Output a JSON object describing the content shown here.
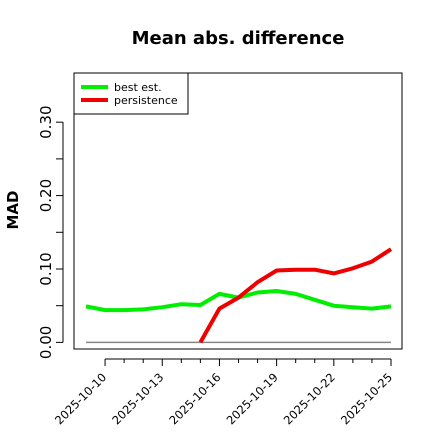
{
  "chart_data": {
    "type": "line",
    "title": "Mean abs. difference",
    "xlabel": "",
    "ylabel": "MAD",
    "x": [
      "2025-10-09",
      "2025-10-10",
      "2025-10-11",
      "2025-10-12",
      "2025-10-13",
      "2025-10-14",
      "2025-10-15",
      "2025-10-16",
      "2025-10-17",
      "2025-10-18",
      "2025-10-19",
      "2025-10-20",
      "2025-10-21",
      "2025-10-22",
      "2025-10-23",
      "2025-10-24",
      "2025-10-25"
    ],
    "xticks": [
      "2025-10-10",
      "2025-10-13",
      "2025-10-16",
      "2025-10-19",
      "2025-10-22",
      "2025-10-25"
    ],
    "yticks": [
      0.0,
      0.1,
      0.2,
      0.3
    ],
    "ytick_labels": [
      "0.00",
      "0.10",
      "0.20",
      "0.30"
    ],
    "ylim": [
      -0.009,
      0.367
    ],
    "grid": false,
    "legend_position": "top-left",
    "series": [
      {
        "name": "best est.",
        "color": "#00ee00",
        "values": [
          0.049,
          0.044,
          0.044,
          0.045,
          0.048,
          0.052,
          0.051,
          0.066,
          0.061,
          0.068,
          0.07,
          0.066,
          0.058,
          0.05,
          0.048,
          0.046,
          0.049
        ]
      },
      {
        "name": "persistence",
        "color": "#ee0000",
        "values": [
          null,
          null,
          null,
          null,
          null,
          null,
          0.0,
          0.046,
          0.061,
          0.082,
          0.098,
          0.099,
          0.099,
          0.094,
          0.101,
          0.11,
          0.127
        ]
      }
    ],
    "reference_line": {
      "value": 0.0,
      "color": "#888888"
    }
  }
}
